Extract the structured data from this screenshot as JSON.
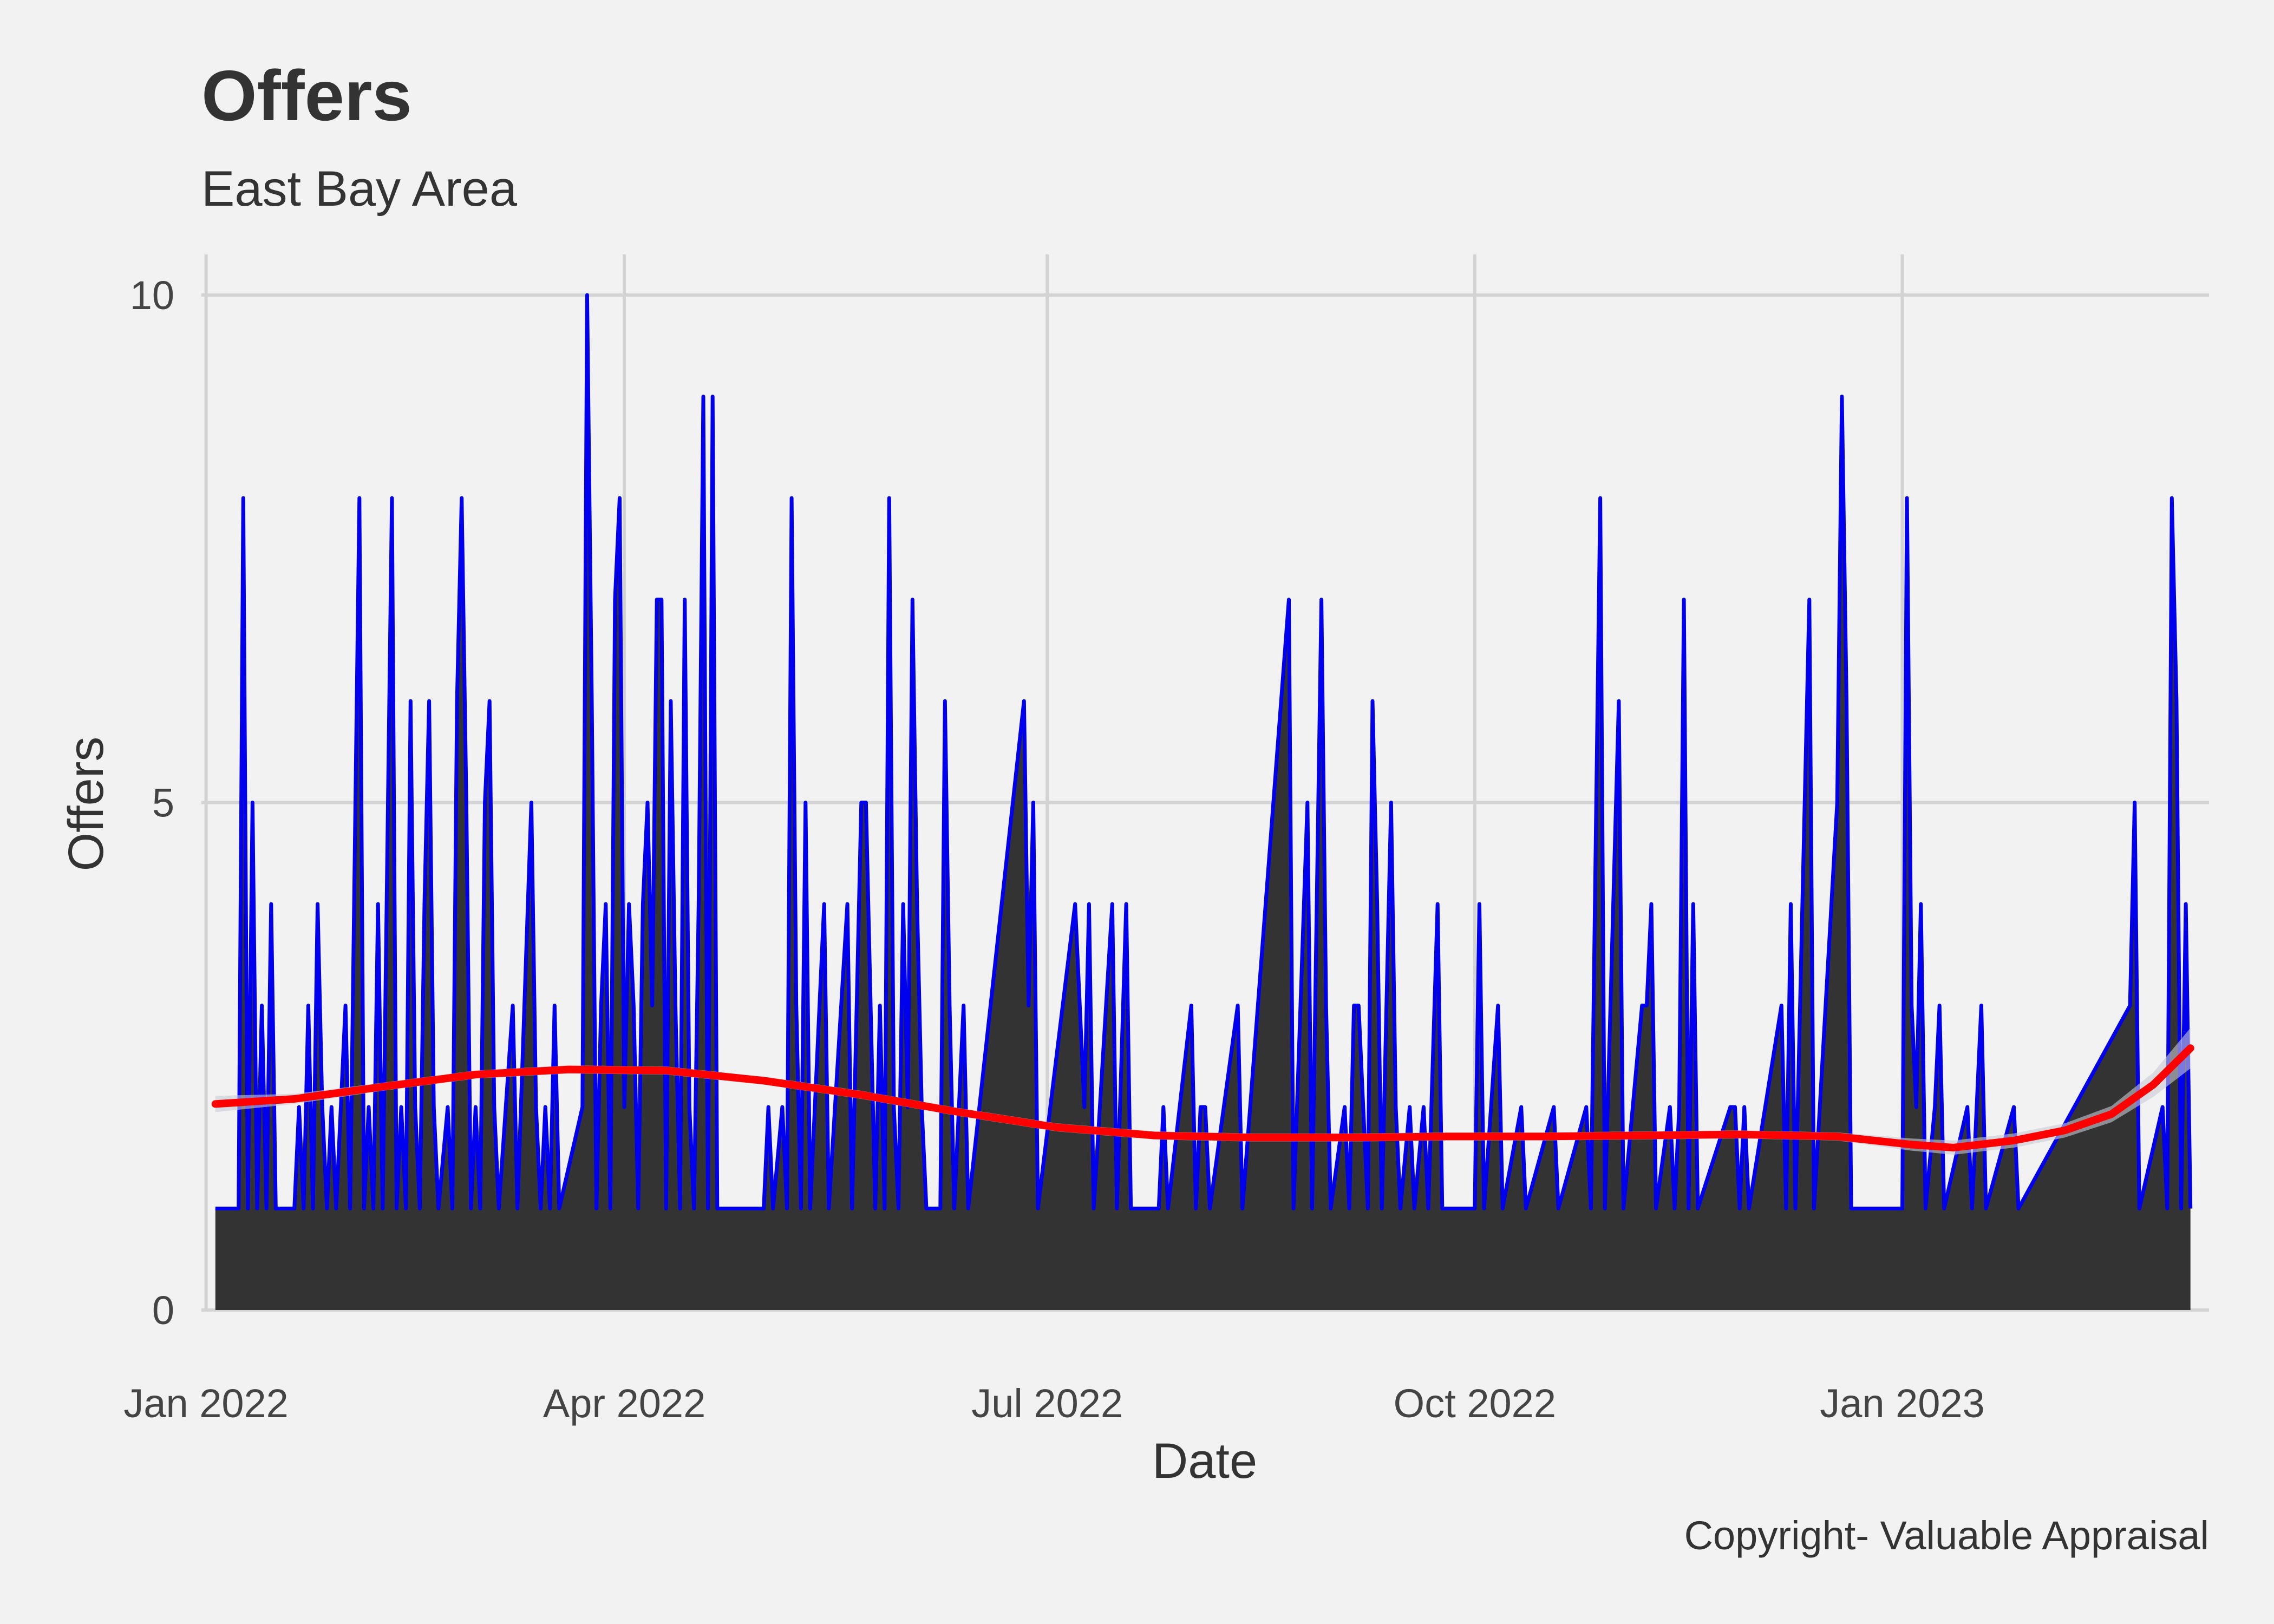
{
  "chart_data": {
    "type": "area",
    "title": "Offers",
    "subtitle": "East Bay  Area",
    "xlabel": "Date",
    "ylabel": "Offers",
    "caption": "Copyright- Valuable Appraisal",
    "x_range": [
      "2021-12-31",
      "2023-03-08"
    ],
    "ylim": [
      0,
      10.4
    ],
    "y_ticks": [
      {
        "value": 0,
        "label": "0"
      },
      {
        "value": 5,
        "label": "5"
      },
      {
        "value": 10,
        "label": "10"
      }
    ],
    "x_ticks": [
      {
        "date": "2022-01-01",
        "label": "Jan 2022"
      },
      {
        "date": "2022-04-01",
        "label": "Apr 2022"
      },
      {
        "date": "2022-07-01",
        "label": "Jul 2022"
      },
      {
        "date": "2022-10-01",
        "label": "Oct 2022"
      },
      {
        "date": "2023-01-01",
        "label": "Jan 2023"
      }
    ],
    "grid": true,
    "legend": "none",
    "colors": {
      "offers_line": "#0000ee",
      "fill": "#333333",
      "smooth": "#ff0000",
      "band": "#c9c9d6",
      "grid": "#d3d3d3",
      "background": "#f2f2f2"
    },
    "offers_series": [
      [
        "2022-01-03",
        1
      ],
      [
        "2022-01-08",
        1
      ],
      [
        "2022-01-09",
        8
      ],
      [
        "2022-01-10",
        1
      ],
      [
        "2022-01-11",
        5
      ],
      [
        "2022-01-12",
        1
      ],
      [
        "2022-01-13",
        3
      ],
      [
        "2022-01-14",
        1
      ],
      [
        "2022-01-15",
        4
      ],
      [
        "2022-01-16",
        1
      ],
      [
        "2022-01-20",
        1
      ],
      [
        "2022-01-21",
        2
      ],
      [
        "2022-01-22",
        1
      ],
      [
        "2022-01-23",
        3
      ],
      [
        "2022-01-24",
        1
      ],
      [
        "2022-01-25",
        4
      ],
      [
        "2022-01-26",
        2
      ],
      [
        "2022-01-27",
        1
      ],
      [
        "2022-01-28",
        2
      ],
      [
        "2022-01-29",
        1
      ],
      [
        "2022-01-31",
        3
      ],
      [
        "2022-02-01",
        1
      ],
      [
        "2022-02-03",
        8
      ],
      [
        "2022-02-04",
        1
      ],
      [
        "2022-02-05",
        2
      ],
      [
        "2022-02-06",
        1
      ],
      [
        "2022-02-07",
        4
      ],
      [
        "2022-02-08",
        1
      ],
      [
        "2022-02-10",
        8
      ],
      [
        "2022-02-11",
        1
      ],
      [
        "2022-02-12",
        2
      ],
      [
        "2022-02-13",
        1
      ],
      [
        "2022-02-14",
        6
      ],
      [
        "2022-02-15",
        2
      ],
      [
        "2022-02-16",
        1
      ],
      [
        "2022-02-17",
        4
      ],
      [
        "2022-02-18",
        6
      ],
      [
        "2022-02-19",
        2
      ],
      [
        "2022-02-20",
        1
      ],
      [
        "2022-02-22",
        2
      ],
      [
        "2022-02-23",
        1
      ],
      [
        "2022-02-24",
        6
      ],
      [
        "2022-02-25",
        8
      ],
      [
        "2022-02-26",
        5
      ],
      [
        "2022-02-27",
        1
      ],
      [
        "2022-02-28",
        2
      ],
      [
        "2022-03-01",
        1
      ],
      [
        "2022-03-02",
        5
      ],
      [
        "2022-03-03",
        6
      ],
      [
        "2022-03-04",
        2
      ],
      [
        "2022-03-05",
        1
      ],
      [
        "2022-03-08",
        3
      ],
      [
        "2022-03-09",
        1
      ],
      [
        "2022-03-12",
        5
      ],
      [
        "2022-03-13",
        2
      ],
      [
        "2022-03-14",
        1
      ],
      [
        "2022-03-15",
        2
      ],
      [
        "2022-03-16",
        1
      ],
      [
        "2022-03-17",
        3
      ],
      [
        "2022-03-18",
        1
      ],
      [
        "2022-03-23",
        2
      ],
      [
        "2022-03-24",
        10
      ],
      [
        "2022-03-25",
        6
      ],
      [
        "2022-03-26",
        1
      ],
      [
        "2022-03-27",
        3
      ],
      [
        "2022-03-28",
        4
      ],
      [
        "2022-03-29",
        1
      ],
      [
        "2022-03-30",
        7
      ],
      [
        "2022-03-31",
        8
      ],
      [
        "2022-04-01",
        2
      ],
      [
        "2022-04-02",
        4
      ],
      [
        "2022-04-03",
        3
      ],
      [
        "2022-04-04",
        1
      ],
      [
        "2022-04-05",
        4
      ],
      [
        "2022-04-06",
        5
      ],
      [
        "2022-04-07",
        3
      ],
      [
        "2022-04-08",
        7
      ],
      [
        "2022-04-09",
        7
      ],
      [
        "2022-04-10",
        1
      ],
      [
        "2022-04-11",
        6
      ],
      [
        "2022-04-12",
        3
      ],
      [
        "2022-04-13",
        1
      ],
      [
        "2022-04-14",
        7
      ],
      [
        "2022-04-15",
        2
      ],
      [
        "2022-04-16",
        1
      ],
      [
        "2022-04-17",
        4
      ],
      [
        "2022-04-18",
        9
      ],
      [
        "2022-04-19",
        1
      ],
      [
        "2022-04-20",
        9
      ],
      [
        "2022-04-21",
        1
      ],
      [
        "2022-05-01",
        1
      ],
      [
        "2022-05-02",
        2
      ],
      [
        "2022-05-03",
        1
      ],
      [
        "2022-05-05",
        2
      ],
      [
        "2022-05-06",
        1
      ],
      [
        "2022-05-07",
        8
      ],
      [
        "2022-05-08",
        3
      ],
      [
        "2022-05-09",
        1
      ],
      [
        "2022-05-10",
        5
      ],
      [
        "2022-05-11",
        1
      ],
      [
        "2022-05-14",
        4
      ],
      [
        "2022-05-15",
        1
      ],
      [
        "2022-05-19",
        4
      ],
      [
        "2022-05-20",
        1
      ],
      [
        "2022-05-21",
        3
      ],
      [
        "2022-05-22",
        5
      ],
      [
        "2022-05-23",
        5
      ],
      [
        "2022-05-24",
        3
      ],
      [
        "2022-05-25",
        1
      ],
      [
        "2022-05-26",
        3
      ],
      [
        "2022-05-27",
        1
      ],
      [
        "2022-05-28",
        8
      ],
      [
        "2022-05-29",
        2
      ],
      [
        "2022-05-30",
        1
      ],
      [
        "2022-05-31",
        4
      ],
      [
        "2022-06-01",
        2
      ],
      [
        "2022-06-02",
        7
      ],
      [
        "2022-06-03",
        4
      ],
      [
        "2022-06-04",
        2
      ],
      [
        "2022-06-05",
        1
      ],
      [
        "2022-06-08",
        1
      ],
      [
        "2022-06-09",
        6
      ],
      [
        "2022-06-10",
        3
      ],
      [
        "2022-06-11",
        1
      ],
      [
        "2022-06-13",
        3
      ],
      [
        "2022-06-14",
        1
      ],
      [
        "2022-06-26",
        6
      ],
      [
        "2022-06-27",
        3
      ],
      [
        "2022-06-28",
        5
      ],
      [
        "2022-06-29",
        1
      ],
      [
        "2022-07-07",
        4
      ],
      [
        "2022-07-08",
        3
      ],
      [
        "2022-07-09",
        2
      ],
      [
        "2022-07-10",
        4
      ],
      [
        "2022-07-11",
        1
      ],
      [
        "2022-07-15",
        4
      ],
      [
        "2022-07-16",
        1
      ],
      [
        "2022-07-18",
        4
      ],
      [
        "2022-07-19",
        1
      ],
      [
        "2022-07-25",
        1
      ],
      [
        "2022-07-26",
        2
      ],
      [
        "2022-07-27",
        1
      ],
      [
        "2022-08-01",
        3
      ],
      [
        "2022-08-02",
        1
      ],
      [
        "2022-08-03",
        2
      ],
      [
        "2022-08-04",
        2
      ],
      [
        "2022-08-05",
        1
      ],
      [
        "2022-08-11",
        3
      ],
      [
        "2022-08-12",
        1
      ],
      [
        "2022-08-22",
        7
      ],
      [
        "2022-08-23",
        1
      ],
      [
        "2022-08-26",
        5
      ],
      [
        "2022-08-27",
        1
      ],
      [
        "2022-08-29",
        7
      ],
      [
        "2022-08-30",
        3
      ],
      [
        "2022-08-31",
        1
      ],
      [
        "2022-09-03",
        2
      ],
      [
        "2022-09-04",
        1
      ],
      [
        "2022-09-05",
        3
      ],
      [
        "2022-09-06",
        3
      ],
      [
        "2022-09-07",
        2
      ],
      [
        "2022-09-08",
        1
      ],
      [
        "2022-09-09",
        6
      ],
      [
        "2022-09-10",
        4
      ],
      [
        "2022-09-11",
        1
      ],
      [
        "2022-09-13",
        5
      ],
      [
        "2022-09-14",
        2
      ],
      [
        "2022-09-15",
        1
      ],
      [
        "2022-09-17",
        2
      ],
      [
        "2022-09-18",
        1
      ],
      [
        "2022-09-20",
        2
      ],
      [
        "2022-09-21",
        1
      ],
      [
        "2022-09-23",
        4
      ],
      [
        "2022-09-24",
        1
      ],
      [
        "2022-10-01",
        1
      ],
      [
        "2022-10-02",
        4
      ],
      [
        "2022-10-03",
        1
      ],
      [
        "2022-10-06",
        3
      ],
      [
        "2022-10-07",
        1
      ],
      [
        "2022-10-11",
        2
      ],
      [
        "2022-10-12",
        1
      ],
      [
        "2022-10-18",
        2
      ],
      [
        "2022-10-19",
        1
      ],
      [
        "2022-10-25",
        2
      ],
      [
        "2022-10-26",
        1
      ],
      [
        "2022-10-28",
        8
      ],
      [
        "2022-10-29",
        1
      ],
      [
        "2022-11-01",
        6
      ],
      [
        "2022-11-02",
        1
      ],
      [
        "2022-11-06",
        3
      ],
      [
        "2022-11-07",
        3
      ],
      [
        "2022-11-08",
        4
      ],
      [
        "2022-11-09",
        1
      ],
      [
        "2022-11-12",
        2
      ],
      [
        "2022-11-13",
        1
      ],
      [
        "2022-11-14",
        2
      ],
      [
        "2022-11-15",
        7
      ],
      [
        "2022-11-16",
        1
      ],
      [
        "2022-11-17",
        4
      ],
      [
        "2022-11-18",
        1
      ],
      [
        "2022-11-25",
        2
      ],
      [
        "2022-11-26",
        2
      ],
      [
        "2022-11-27",
        1
      ],
      [
        "2022-11-28",
        2
      ],
      [
        "2022-11-29",
        1
      ],
      [
        "2022-12-06",
        3
      ],
      [
        "2022-12-07",
        1
      ],
      [
        "2022-12-08",
        4
      ],
      [
        "2022-12-09",
        1
      ],
      [
        "2022-12-12",
        7
      ],
      [
        "2022-12-13",
        1
      ],
      [
        "2022-12-18",
        5
      ],
      [
        "2022-12-19",
        9
      ],
      [
        "2022-12-20",
        6
      ],
      [
        "2022-12-21",
        1
      ],
      [
        "2023-01-01",
        1
      ],
      [
        "2023-01-02",
        8
      ],
      [
        "2023-01-03",
        3
      ],
      [
        "2023-01-04",
        2
      ],
      [
        "2023-01-05",
        4
      ],
      [
        "2023-01-06",
        1
      ],
      [
        "2023-01-08",
        2
      ],
      [
        "2023-01-09",
        3
      ],
      [
        "2023-01-10",
        1
      ],
      [
        "2023-01-15",
        2
      ],
      [
        "2023-01-16",
        1
      ],
      [
        "2023-01-18",
        3
      ],
      [
        "2023-01-19",
        1
      ],
      [
        "2023-01-25",
        2
      ],
      [
        "2023-01-26",
        1
      ],
      [
        "2023-02-19",
        3
      ],
      [
        "2023-02-20",
        5
      ],
      [
        "2023-02-21",
        1
      ],
      [
        "2023-02-26",
        2
      ],
      [
        "2023-02-27",
        1
      ],
      [
        "2023-02-28",
        8
      ],
      [
        "2023-03-01",
        6
      ],
      [
        "2023-03-02",
        1
      ],
      [
        "2023-03-03",
        4
      ],
      [
        "2023-03-04",
        1
      ]
    ],
    "smooth_series": [
      [
        "2022-01-03",
        2.03
      ],
      [
        "2022-01-20",
        2.08
      ],
      [
        "2022-02-08",
        2.2
      ],
      [
        "2022-02-28",
        2.32
      ],
      [
        "2022-03-20",
        2.37
      ],
      [
        "2022-04-10",
        2.36
      ],
      [
        "2022-05-01",
        2.26
      ],
      [
        "2022-05-22",
        2.12
      ],
      [
        "2022-06-12",
        1.95
      ],
      [
        "2022-07-03",
        1.8
      ],
      [
        "2022-07-24",
        1.72
      ],
      [
        "2022-08-14",
        1.7
      ],
      [
        "2022-09-04",
        1.7
      ],
      [
        "2022-09-25",
        1.71
      ],
      [
        "2022-10-16",
        1.71
      ],
      [
        "2022-11-06",
        1.72
      ],
      [
        "2022-11-27",
        1.73
      ],
      [
        "2022-12-18",
        1.71
      ],
      [
        "2023-01-03",
        1.63
      ],
      [
        "2023-01-12",
        1.6
      ],
      [
        "2023-01-25",
        1.67
      ],
      [
        "2023-02-05",
        1.77
      ],
      [
        "2023-02-15",
        1.93
      ],
      [
        "2023-02-24",
        2.22
      ],
      [
        "2023-03-04",
        2.58
      ]
    ],
    "smooth_band_halfwidth": [
      0.08,
      0.05,
      0.04,
      0.04,
      0.04,
      0.04,
      0.04,
      0.04,
      0.04,
      0.04,
      0.04,
      0.04,
      0.04,
      0.04,
      0.04,
      0.04,
      0.04,
      0.04,
      0.06,
      0.07,
      0.07,
      0.07,
      0.08,
      0.12,
      0.2
    ]
  }
}
